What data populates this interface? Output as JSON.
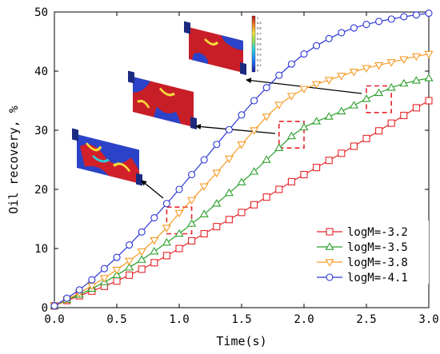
{
  "chart_data": {
    "type": "line",
    "title": "",
    "xlabel": "Time(s)",
    "ylabel": "Oil recovery, %",
    "xlim": [
      0,
      3.0
    ],
    "ylim": [
      0,
      50
    ],
    "xticks": [
      "0.0",
      "0.5",
      "1.0",
      "1.5",
      "2.0",
      "2.5",
      "3.0"
    ],
    "yticks": [
      "0",
      "10",
      "20",
      "30",
      "40",
      "50"
    ],
    "grid": false,
    "legend_position": "bottom-right",
    "x": [
      0.0,
      0.1,
      0.2,
      0.3,
      0.4,
      0.5,
      0.6,
      0.7,
      0.8,
      0.9,
      1.0,
      1.1,
      1.2,
      1.3,
      1.4,
      1.5,
      1.6,
      1.7,
      1.8,
      1.9,
      2.0,
      2.1,
      2.2,
      2.3,
      2.4,
      2.5,
      2.6,
      2.7,
      2.8,
      2.9,
      3.0
    ],
    "series": [
      {
        "name": "logM=-3.2",
        "marker": "square",
        "color": "#e8252a",
        "values": [
          0.3,
          1.2,
          2.0,
          2.8,
          3.6,
          4.5,
          5.5,
          6.5,
          7.6,
          8.8,
          10.0,
          11.3,
          12.5,
          13.7,
          14.9,
          16.1,
          17.4,
          18.7,
          20.0,
          21.3,
          22.5,
          23.7,
          24.9,
          26.1,
          27.3,
          28.6,
          29.9,
          31.2,
          32.5,
          33.8,
          35.0
        ]
      },
      {
        "name": "logM=-3.5",
        "marker": "triangle",
        "color": "#2ca02c",
        "values": [
          0.3,
          1.3,
          2.2,
          3.2,
          4.3,
          5.5,
          6.8,
          8.1,
          9.5,
          11.0,
          12.5,
          14.2,
          15.8,
          17.6,
          19.4,
          21.2,
          23.0,
          25.0,
          27.0,
          29.0,
          30.5,
          31.5,
          32.3,
          33.2,
          34.2,
          35.3,
          36.3,
          37.2,
          37.9,
          38.4,
          38.8
        ]
      },
      {
        "name": "logM=-3.8",
        "marker": "triangle-down",
        "color": "#f59a23",
        "values": [
          0.3,
          1.4,
          2.5,
          3.7,
          5.0,
          6.4,
          7.9,
          9.5,
          11.4,
          13.5,
          16.0,
          18.2,
          20.5,
          22.8,
          25.2,
          27.6,
          30.0,
          32.3,
          34.3,
          35.8,
          37.0,
          37.8,
          38.5,
          39.2,
          39.9,
          40.5,
          41.0,
          41.5,
          42.0,
          42.5,
          42.9
        ]
      },
      {
        "name": "logM=-4.1",
        "marker": "circle",
        "color": "#2a35d6",
        "values": [
          0.3,
          1.6,
          3.0,
          4.7,
          6.6,
          8.5,
          10.6,
          12.8,
          15.2,
          17.6,
          20.0,
          22.5,
          25.0,
          27.6,
          30.1,
          32.6,
          35.0,
          37.2,
          39.3,
          41.2,
          42.9,
          44.3,
          45.5,
          46.5,
          47.3,
          47.9,
          48.4,
          48.8,
          49.2,
          49.5,
          49.8
        ]
      }
    ],
    "colorbar_ticks": [
      "1",
      "0.9",
      "0.8",
      "0.7",
      "0.6",
      "0.5",
      "0.4",
      "0.3",
      "0.2",
      "0.1",
      "0"
    ],
    "highlight_boxes": [
      {
        "x": [
          0.9,
          1.1
        ],
        "y": [
          12.5,
          17.0
        ]
      },
      {
        "x": [
          1.8,
          2.0
        ],
        "y": [
          27.0,
          31.5
        ]
      },
      {
        "x": [
          2.5,
          2.7
        ],
        "y": [
          33.0,
          37.5
        ]
      }
    ]
  }
}
